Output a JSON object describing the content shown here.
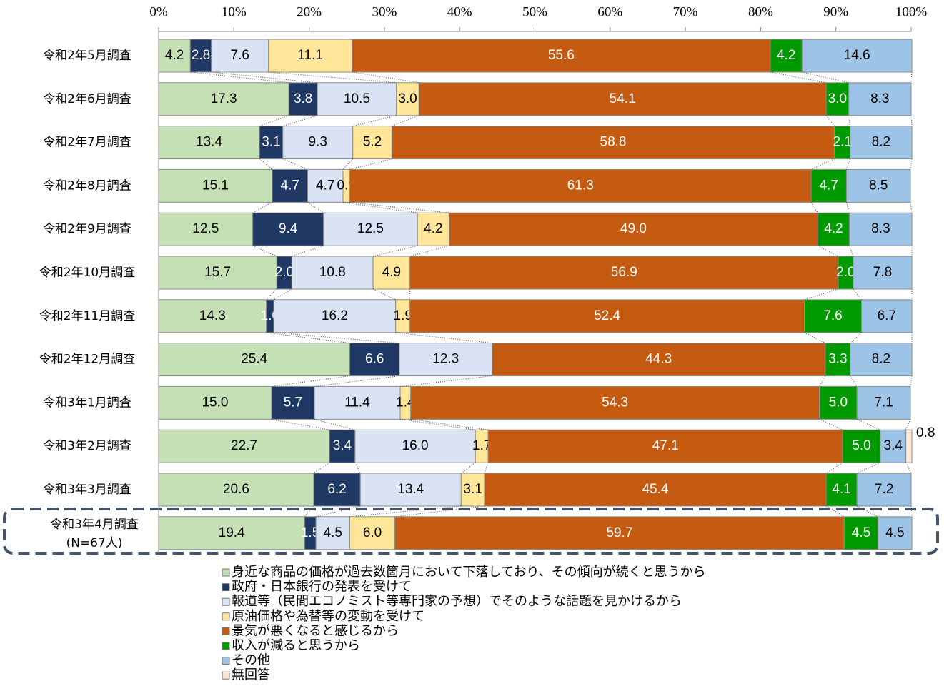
{
  "chart_data": {
    "type": "stacked-bar-horizontal",
    "categories": [
      "令和2年5月調査",
      "令和2年6月調査",
      "令和2年7月調査",
      "令和2年8月調査",
      "令和2年9月調査",
      "令和2年10月調査",
      "令和2年11月調査",
      "令和2年12月調査",
      "令和3年1月調査",
      "令和3年2月調査",
      "令和3年3月調査",
      "令和3年4月調査"
    ],
    "highlight_note": "(N=67人)",
    "xlim": [
      0,
      100
    ],
    "xticks": [
      {
        "value": 0,
        "label": "0%"
      },
      {
        "value": 10,
        "label": "10%"
      },
      {
        "value": 20,
        "label": "20%"
      },
      {
        "value": 30,
        "label": "30%"
      },
      {
        "value": 40,
        "label": "40%"
      },
      {
        "value": 50,
        "label": "50%"
      },
      {
        "value": 60,
        "label": "60%"
      },
      {
        "value": 70,
        "label": "70%"
      },
      {
        "value": 80,
        "label": "80%"
      },
      {
        "value": 90,
        "label": "90%"
      },
      {
        "value": 100,
        "label": "100%"
      }
    ],
    "series": [
      {
        "name": "身近な商品の価格が過去数箇月において下落しており、その傾向が続くと思うから",
        "color": "#c5e0b4",
        "label_color": "#000000",
        "values": [
          4.2,
          17.3,
          13.4,
          15.1,
          12.5,
          15.7,
          14.3,
          25.4,
          15.0,
          22.7,
          20.6,
          19.4
        ],
        "value_labels": [
          "4.2",
          "17.3",
          "13.4",
          "15.1",
          "12.5",
          "15.7",
          "14.3",
          "25.4",
          "15.0",
          "22.7",
          "20.6",
          "19.4"
        ]
      },
      {
        "name": "政府・日本銀行の発表を受けて",
        "color": "#1f3864",
        "label_color": "#ffffff",
        "values": [
          2.8,
          3.8,
          3.1,
          4.7,
          9.4,
          2.0,
          1.0,
          6.6,
          5.7,
          3.4,
          6.2,
          1.5
        ],
        "value_labels": [
          "2.8",
          "3.8",
          "3.1",
          "4.7",
          "9.4",
          "2.0",
          "1.0",
          "6.6",
          "5.7",
          "3.4",
          "6.2",
          "1.5"
        ]
      },
      {
        "name": "報道等（民間エコノミスト等専門家の予想）でそのような話題を見かけるから",
        "color": "#dae3f3",
        "label_color": "#000000",
        "values": [
          7.6,
          10.5,
          9.3,
          4.7,
          12.5,
          10.8,
          16.2,
          12.3,
          11.4,
          16.0,
          13.4,
          4.5
        ],
        "value_labels": [
          "7.6",
          "10.5",
          "9.3",
          "4.7",
          "12.5",
          "10.8",
          "16.2",
          "12.3",
          "11.4",
          "16.0",
          "13.4",
          "4.5"
        ]
      },
      {
        "name": "原油価格や為替等の変動を受けて",
        "color": "#ffe699",
        "label_color": "#000000",
        "values": [
          11.1,
          3.0,
          5.2,
          0.9,
          4.2,
          4.9,
          1.9,
          null,
          1.4,
          1.7,
          3.1,
          6.0
        ],
        "value_labels": [
          "11.1",
          "3.0",
          "5.2",
          "0.9",
          "4.2",
          "4.9",
          "1.9",
          null,
          "1.4",
          "1.7",
          "3.1",
          "6.0"
        ]
      },
      {
        "name": "景気が悪くなると感じるから",
        "color": "#c55a11",
        "label_color": "#ffffff",
        "values": [
          55.6,
          54.1,
          58.8,
          61.3,
          49.0,
          56.9,
          52.4,
          44.3,
          54.3,
          47.1,
          45.4,
          59.7
        ],
        "value_labels": [
          "55.6",
          "54.1",
          "58.8",
          "61.3",
          "49.0",
          "56.9",
          "52.4",
          "44.3",
          "54.3",
          "47.1",
          "45.4",
          "59.7"
        ]
      },
      {
        "name": "収入が減ると思うから",
        "color": "#009a00",
        "label_color": "#ffffff",
        "values": [
          4.2,
          3.0,
          2.1,
          4.7,
          4.2,
          2.0,
          7.6,
          3.3,
          5.0,
          5.0,
          4.1,
          4.5
        ],
        "value_labels": [
          "4.2",
          "3.0",
          "2.1",
          "4.7",
          "4.2",
          "2.0",
          "7.6",
          "3.3",
          "5.0",
          "5.0",
          "4.1",
          "4.5"
        ]
      },
      {
        "name": "その他",
        "color": "#9dc3e6",
        "label_color": "#000000",
        "values": [
          14.6,
          8.3,
          8.2,
          8.5,
          8.3,
          7.8,
          6.7,
          8.2,
          7.1,
          3.4,
          7.2,
          4.5
        ],
        "value_labels": [
          "14.6",
          "8.3",
          "8.2",
          "8.5",
          "8.3",
          "7.8",
          "6.7",
          "8.2",
          "7.1",
          "3.4",
          "7.2",
          "4.5"
        ]
      },
      {
        "name": "無回答",
        "color": "#fbe5d6",
        "label_color": "#000000",
        "values": [
          null,
          null,
          null,
          null,
          null,
          null,
          null,
          null,
          null,
          0.8,
          null,
          null
        ],
        "value_labels": [
          null,
          null,
          null,
          null,
          null,
          null,
          null,
          null,
          null,
          "0.8",
          null,
          null
        ]
      }
    ]
  }
}
